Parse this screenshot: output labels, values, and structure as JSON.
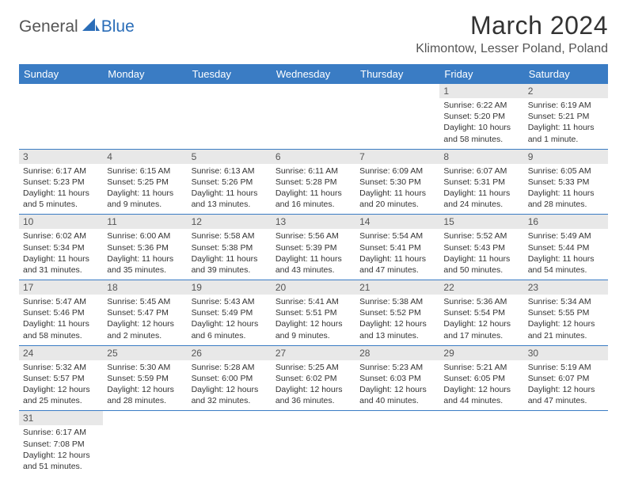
{
  "header": {
    "logo_a": "General",
    "logo_b": "Blue",
    "title": "March 2024",
    "location": "Klimontow, Lesser Poland, Poland"
  },
  "colors": {
    "header_bg": "#3a7cc4",
    "header_fg": "#ffffff",
    "daynum_bg": "#e8e8e8",
    "daynum_fg": "#555555",
    "rule": "#3a7cc4",
    "logo_accent": "#2a6db8"
  },
  "weekdays": [
    "Sunday",
    "Monday",
    "Tuesday",
    "Wednesday",
    "Thursday",
    "Friday",
    "Saturday"
  ],
  "weeks": [
    [
      null,
      null,
      null,
      null,
      null,
      {
        "n": "1",
        "sunrise": "Sunrise: 6:22 AM",
        "sunset": "Sunset: 5:20 PM",
        "daylight": "Daylight: 10 hours and 58 minutes."
      },
      {
        "n": "2",
        "sunrise": "Sunrise: 6:19 AM",
        "sunset": "Sunset: 5:21 PM",
        "daylight": "Daylight: 11 hours and 1 minute."
      }
    ],
    [
      {
        "n": "3",
        "sunrise": "Sunrise: 6:17 AM",
        "sunset": "Sunset: 5:23 PM",
        "daylight": "Daylight: 11 hours and 5 minutes."
      },
      {
        "n": "4",
        "sunrise": "Sunrise: 6:15 AM",
        "sunset": "Sunset: 5:25 PM",
        "daylight": "Daylight: 11 hours and 9 minutes."
      },
      {
        "n": "5",
        "sunrise": "Sunrise: 6:13 AM",
        "sunset": "Sunset: 5:26 PM",
        "daylight": "Daylight: 11 hours and 13 minutes."
      },
      {
        "n": "6",
        "sunrise": "Sunrise: 6:11 AM",
        "sunset": "Sunset: 5:28 PM",
        "daylight": "Daylight: 11 hours and 16 minutes."
      },
      {
        "n": "7",
        "sunrise": "Sunrise: 6:09 AM",
        "sunset": "Sunset: 5:30 PM",
        "daylight": "Daylight: 11 hours and 20 minutes."
      },
      {
        "n": "8",
        "sunrise": "Sunrise: 6:07 AM",
        "sunset": "Sunset: 5:31 PM",
        "daylight": "Daylight: 11 hours and 24 minutes."
      },
      {
        "n": "9",
        "sunrise": "Sunrise: 6:05 AM",
        "sunset": "Sunset: 5:33 PM",
        "daylight": "Daylight: 11 hours and 28 minutes."
      }
    ],
    [
      {
        "n": "10",
        "sunrise": "Sunrise: 6:02 AM",
        "sunset": "Sunset: 5:34 PM",
        "daylight": "Daylight: 11 hours and 31 minutes."
      },
      {
        "n": "11",
        "sunrise": "Sunrise: 6:00 AM",
        "sunset": "Sunset: 5:36 PM",
        "daylight": "Daylight: 11 hours and 35 minutes."
      },
      {
        "n": "12",
        "sunrise": "Sunrise: 5:58 AM",
        "sunset": "Sunset: 5:38 PM",
        "daylight": "Daylight: 11 hours and 39 minutes."
      },
      {
        "n": "13",
        "sunrise": "Sunrise: 5:56 AM",
        "sunset": "Sunset: 5:39 PM",
        "daylight": "Daylight: 11 hours and 43 minutes."
      },
      {
        "n": "14",
        "sunrise": "Sunrise: 5:54 AM",
        "sunset": "Sunset: 5:41 PM",
        "daylight": "Daylight: 11 hours and 47 minutes."
      },
      {
        "n": "15",
        "sunrise": "Sunrise: 5:52 AM",
        "sunset": "Sunset: 5:43 PM",
        "daylight": "Daylight: 11 hours and 50 minutes."
      },
      {
        "n": "16",
        "sunrise": "Sunrise: 5:49 AM",
        "sunset": "Sunset: 5:44 PM",
        "daylight": "Daylight: 11 hours and 54 minutes."
      }
    ],
    [
      {
        "n": "17",
        "sunrise": "Sunrise: 5:47 AM",
        "sunset": "Sunset: 5:46 PM",
        "daylight": "Daylight: 11 hours and 58 minutes."
      },
      {
        "n": "18",
        "sunrise": "Sunrise: 5:45 AM",
        "sunset": "Sunset: 5:47 PM",
        "daylight": "Daylight: 12 hours and 2 minutes."
      },
      {
        "n": "19",
        "sunrise": "Sunrise: 5:43 AM",
        "sunset": "Sunset: 5:49 PM",
        "daylight": "Daylight: 12 hours and 6 minutes."
      },
      {
        "n": "20",
        "sunrise": "Sunrise: 5:41 AM",
        "sunset": "Sunset: 5:51 PM",
        "daylight": "Daylight: 12 hours and 9 minutes."
      },
      {
        "n": "21",
        "sunrise": "Sunrise: 5:38 AM",
        "sunset": "Sunset: 5:52 PM",
        "daylight": "Daylight: 12 hours and 13 minutes."
      },
      {
        "n": "22",
        "sunrise": "Sunrise: 5:36 AM",
        "sunset": "Sunset: 5:54 PM",
        "daylight": "Daylight: 12 hours and 17 minutes."
      },
      {
        "n": "23",
        "sunrise": "Sunrise: 5:34 AM",
        "sunset": "Sunset: 5:55 PM",
        "daylight": "Daylight: 12 hours and 21 minutes."
      }
    ],
    [
      {
        "n": "24",
        "sunrise": "Sunrise: 5:32 AM",
        "sunset": "Sunset: 5:57 PM",
        "daylight": "Daylight: 12 hours and 25 minutes."
      },
      {
        "n": "25",
        "sunrise": "Sunrise: 5:30 AM",
        "sunset": "Sunset: 5:59 PM",
        "daylight": "Daylight: 12 hours and 28 minutes."
      },
      {
        "n": "26",
        "sunrise": "Sunrise: 5:28 AM",
        "sunset": "Sunset: 6:00 PM",
        "daylight": "Daylight: 12 hours and 32 minutes."
      },
      {
        "n": "27",
        "sunrise": "Sunrise: 5:25 AM",
        "sunset": "Sunset: 6:02 PM",
        "daylight": "Daylight: 12 hours and 36 minutes."
      },
      {
        "n": "28",
        "sunrise": "Sunrise: 5:23 AM",
        "sunset": "Sunset: 6:03 PM",
        "daylight": "Daylight: 12 hours and 40 minutes."
      },
      {
        "n": "29",
        "sunrise": "Sunrise: 5:21 AM",
        "sunset": "Sunset: 6:05 PM",
        "daylight": "Daylight: 12 hours and 44 minutes."
      },
      {
        "n": "30",
        "sunrise": "Sunrise: 5:19 AM",
        "sunset": "Sunset: 6:07 PM",
        "daylight": "Daylight: 12 hours and 47 minutes."
      }
    ],
    [
      {
        "n": "31",
        "sunrise": "Sunrise: 6:17 AM",
        "sunset": "Sunset: 7:08 PM",
        "daylight": "Daylight: 12 hours and 51 minutes."
      },
      null,
      null,
      null,
      null,
      null,
      null
    ]
  ]
}
